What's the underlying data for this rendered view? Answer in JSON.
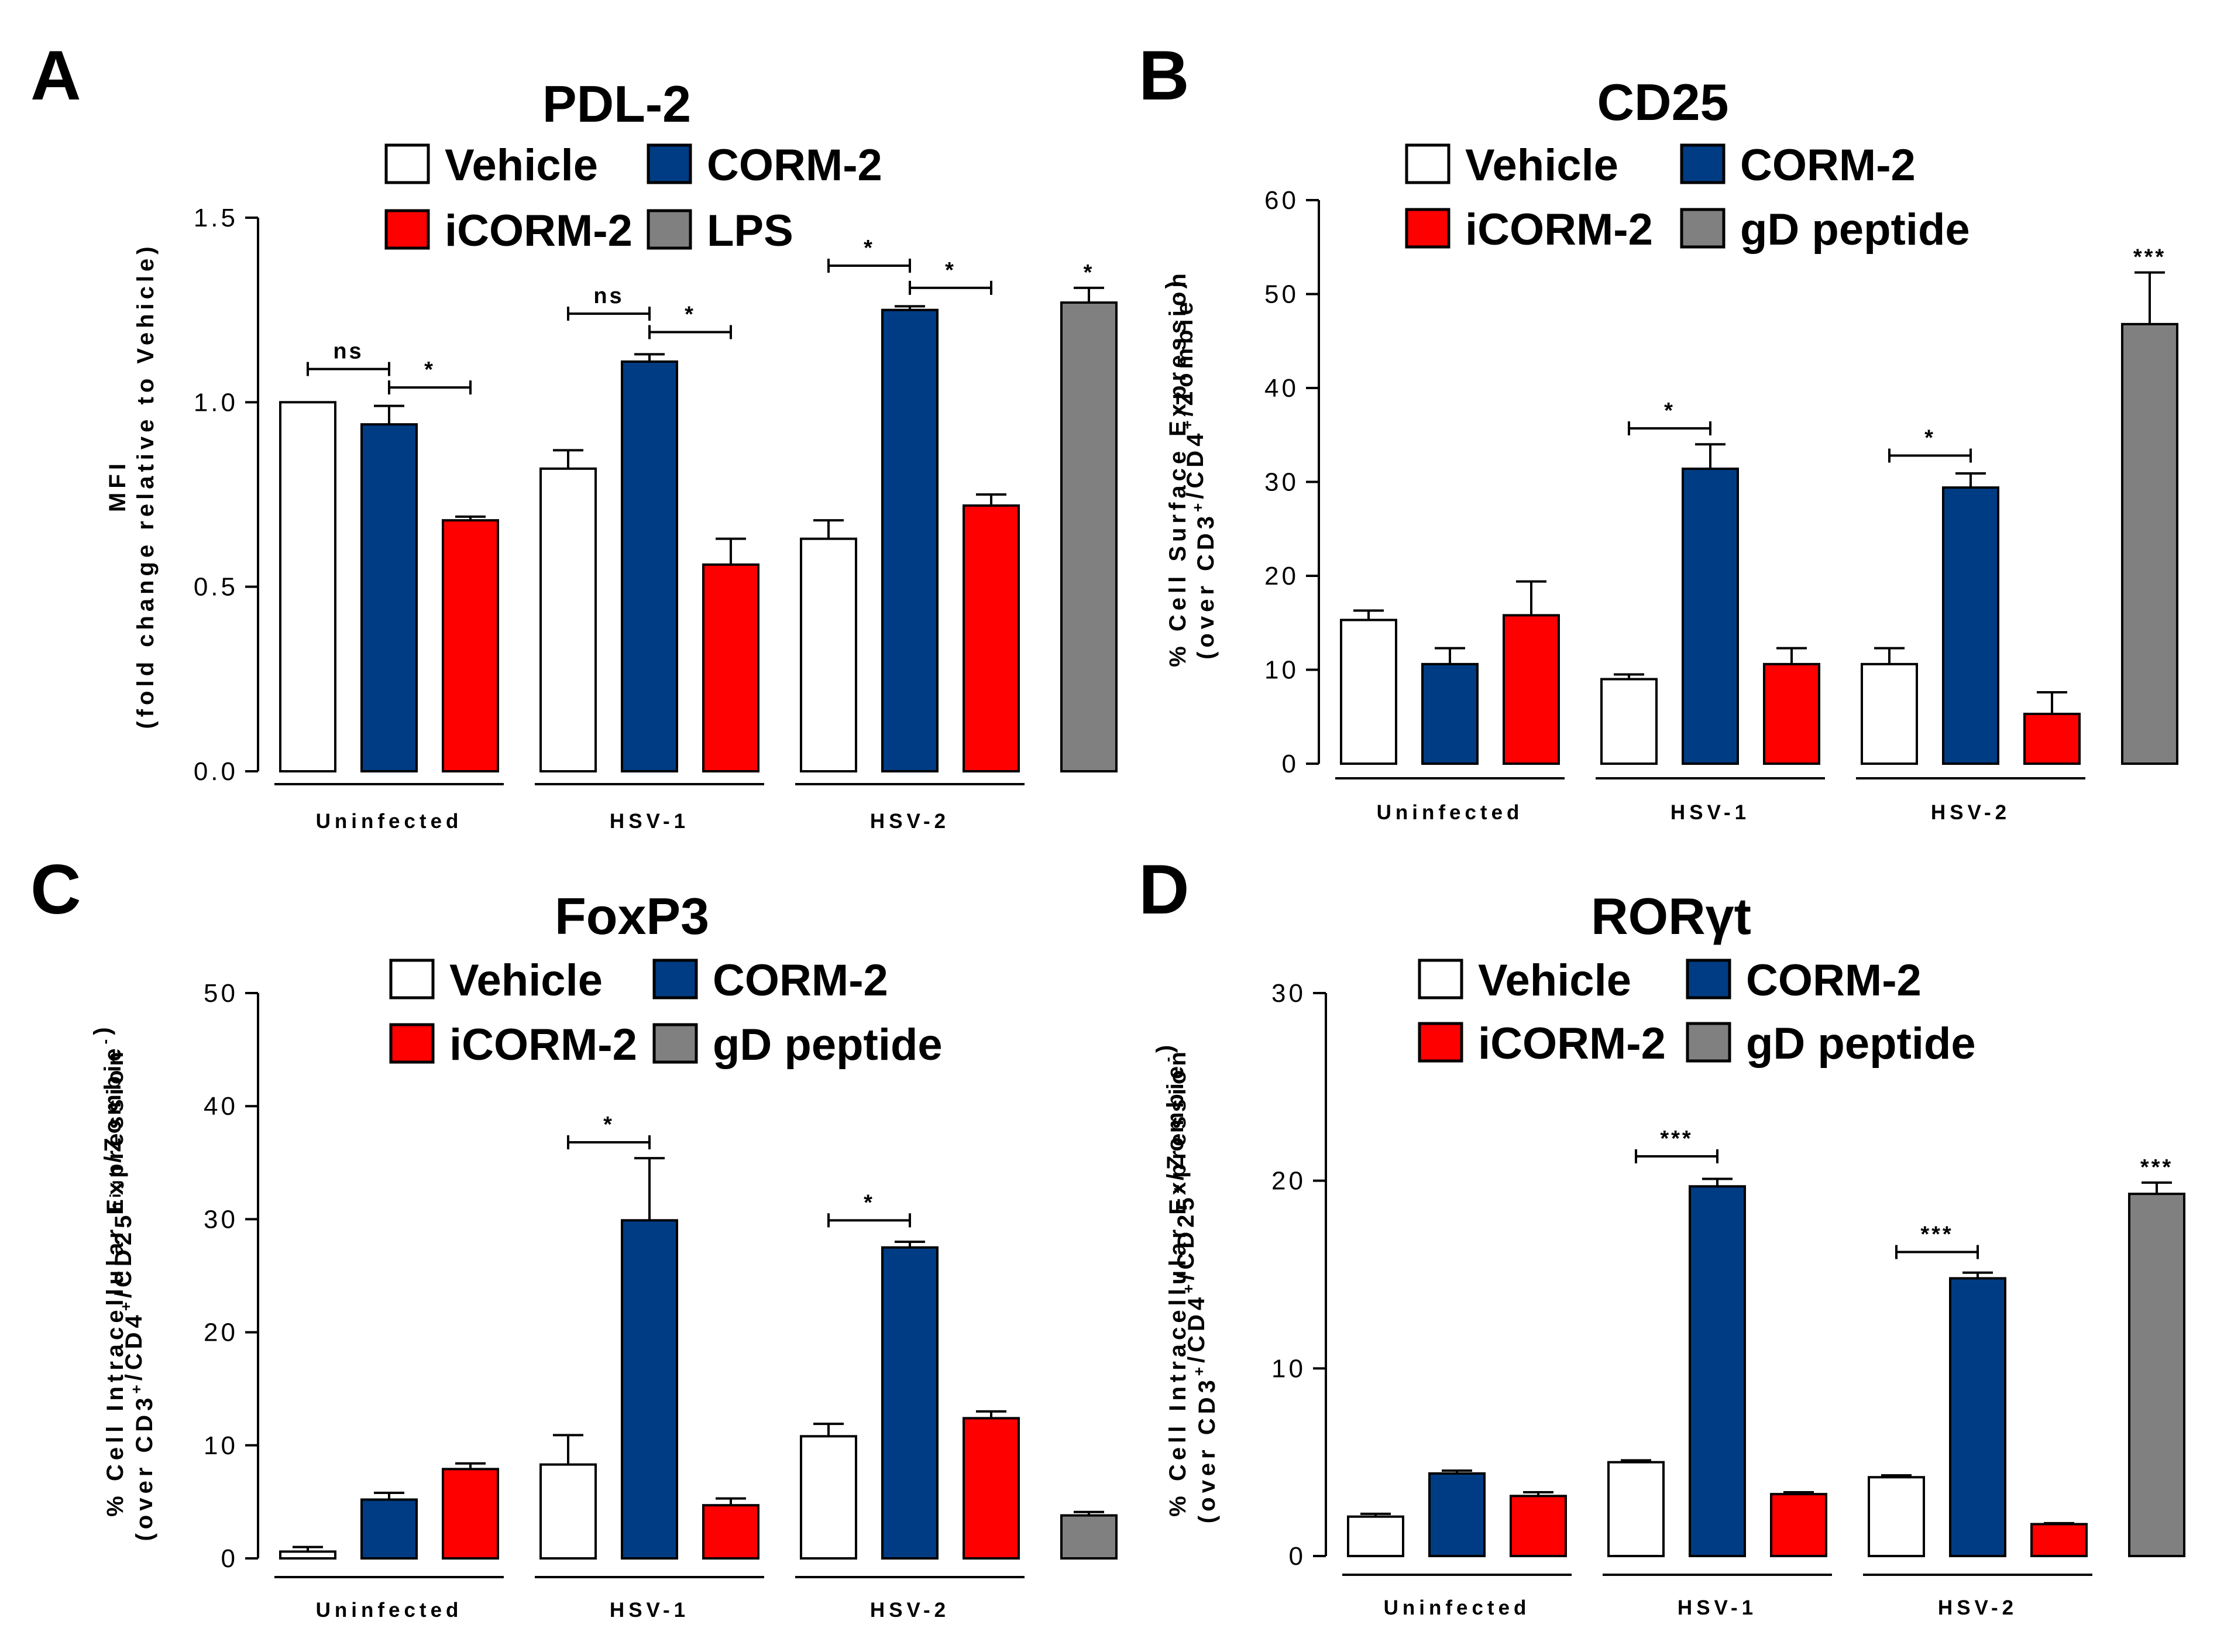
{
  "figure": {
    "colors": {
      "vehicle": "#ffffff",
      "corm2": "#003c83",
      "icorm2": "#ff0000",
      "control": "#808080"
    }
  },
  "chart_data": [
    {
      "type": "bar",
      "letter": "A",
      "title": "PDL-2",
      "ylabel_lines": [
        {
          "t": "MFI"
        },
        {
          "t": "(fold change relative to Vehicle)"
        }
      ],
      "ylim": [
        0,
        1.5
      ],
      "yticks": [
        "0.0",
        "0.5",
        "1.0",
        "1.5"
      ],
      "ytick_values": [
        0,
        0.5,
        1.0,
        1.5
      ],
      "legend": [
        "Vehicle",
        "CORM-2",
        "iCORM-2",
        "LPS"
      ],
      "groups": [
        "Uninfected",
        "HSV-1",
        "HSV-2"
      ],
      "series_values": [
        {
          "group": 0,
          "series": "vehicle",
          "value": 1.0,
          "err": 0
        },
        {
          "group": 0,
          "series": "corm2",
          "value": 0.94,
          "err": 0.05
        },
        {
          "group": 0,
          "series": "icorm2",
          "value": 0.68,
          "err": 0.01
        },
        {
          "group": 1,
          "series": "vehicle",
          "value": 0.82,
          "err": 0.05
        },
        {
          "group": 1,
          "series": "corm2",
          "value": 1.11,
          "err": 0.02
        },
        {
          "group": 1,
          "series": "icorm2",
          "value": 0.56,
          "err": 0.07
        },
        {
          "group": 2,
          "series": "vehicle",
          "value": 0.63,
          "err": 0.05
        },
        {
          "group": 2,
          "series": "corm2",
          "value": 1.25,
          "err": 0.01
        },
        {
          "group": 2,
          "series": "icorm2",
          "value": 0.72,
          "err": 0.03
        },
        {
          "group": 3,
          "series": "control",
          "value": 1.27,
          "err": 0.04,
          "sig": "*"
        }
      ],
      "comparisons": [
        {
          "from": 0,
          "to": 1,
          "label": "ns",
          "y": 1.09
        },
        {
          "from": 1,
          "to": 2,
          "label": "*",
          "y": 1.04
        },
        {
          "from": 3,
          "to": 4,
          "label": "ns",
          "y": 1.24
        },
        {
          "from": 4,
          "to": 5,
          "label": "*",
          "y": 1.19
        },
        {
          "from": 6,
          "to": 7,
          "label": "*",
          "y": 1.37
        },
        {
          "from": 7,
          "to": 8,
          "label": "*",
          "y": 1.31
        }
      ]
    },
    {
      "type": "bar",
      "letter": "B",
      "title": "CD25",
      "ylabel_lines": [
        {
          "t": "% Cell Surface Expression"
        },
        {
          "t": "(over CD3",
          "s": "+",
          "t2": "/CD4",
          "s2": "+",
          "t3": "/Zombie",
          "s3": "-",
          "t4": ")"
        }
      ],
      "ylim": [
        0,
        60
      ],
      "yticks": [
        "0",
        "10",
        "20",
        "30",
        "40",
        "50",
        "60"
      ],
      "ytick_values": [
        0,
        10,
        20,
        30,
        40,
        50,
        60
      ],
      "legend": [
        "Vehicle",
        "CORM-2",
        "iCORM-2",
        "gD peptide"
      ],
      "groups": [
        "Uninfected",
        "HSV-1",
        "HSV-2"
      ],
      "series_values": [
        {
          "group": 0,
          "series": "vehicle",
          "value": 15.3,
          "err": 1.0
        },
        {
          "group": 0,
          "series": "corm2",
          "value": 10.6,
          "err": 1.7
        },
        {
          "group": 0,
          "series": "icorm2",
          "value": 15.8,
          "err": 3.6
        },
        {
          "group": 1,
          "series": "vehicle",
          "value": 9.0,
          "err": 0.5
        },
        {
          "group": 1,
          "series": "corm2",
          "value": 31.4,
          "err": 2.6
        },
        {
          "group": 1,
          "series": "icorm2",
          "value": 10.6,
          "err": 1.7
        },
        {
          "group": 2,
          "series": "vehicle",
          "value": 10.6,
          "err": 1.7
        },
        {
          "group": 2,
          "series": "corm2",
          "value": 29.4,
          "err": 1.5
        },
        {
          "group": 2,
          "series": "icorm2",
          "value": 5.3,
          "err": 2.3
        },
        {
          "group": 3,
          "series": "control",
          "value": 46.8,
          "err": 5.5,
          "sig": "***"
        }
      ],
      "comparisons": [
        {
          "from": 3,
          "to": 4,
          "label": "*",
          "y": 35.7
        },
        {
          "from": 6,
          "to": 7,
          "label": "*",
          "y": 32.8
        }
      ]
    },
    {
      "type": "bar",
      "letter": "C",
      "title": "FoxP3",
      "ylabel_lines": [
        {
          "t": "% Cell Intracellular Expression"
        },
        {
          "t": "(over CD3",
          "s": "+",
          "t2": "/CD4",
          "s2": "+",
          "t3": "/CD25",
          "s3": "high",
          "t4": "/Zombie",
          "s4": "-",
          "t5": ")"
        }
      ],
      "ylim": [
        0,
        50
      ],
      "yticks": [
        "0",
        "10",
        "20",
        "30",
        "40",
        "50"
      ],
      "ytick_values": [
        0,
        10,
        20,
        30,
        40,
        50
      ],
      "legend": [
        "Vehicle",
        "CORM-2",
        "iCORM-2",
        "gD peptide"
      ],
      "groups": [
        "Uninfected",
        "HSV-1",
        "HSV-2"
      ],
      "series_values": [
        {
          "group": 0,
          "series": "vehicle",
          "value": 0.6,
          "err": 0.4
        },
        {
          "group": 0,
          "series": "corm2",
          "value": 5.2,
          "err": 0.6
        },
        {
          "group": 0,
          "series": "icorm2",
          "value": 7.9,
          "err": 0.5
        },
        {
          "group": 1,
          "series": "vehicle",
          "value": 8.3,
          "err": 2.6
        },
        {
          "group": 1,
          "series": "corm2",
          "value": 29.9,
          "err": 5.5
        },
        {
          "group": 1,
          "series": "icorm2",
          "value": 4.7,
          "err": 0.6
        },
        {
          "group": 2,
          "series": "vehicle",
          "value": 10.8,
          "err": 1.1
        },
        {
          "group": 2,
          "series": "corm2",
          "value": 27.5,
          "err": 0.5
        },
        {
          "group": 2,
          "series": "icorm2",
          "value": 12.4,
          "err": 0.6
        },
        {
          "group": 3,
          "series": "control",
          "value": 3.8,
          "err": 0.3
        }
      ],
      "comparisons": [
        {
          "from": 3,
          "to": 4,
          "label": "*",
          "y": 36.8
        },
        {
          "from": 6,
          "to": 7,
          "label": "*",
          "y": 29.9
        }
      ]
    },
    {
      "type": "bar",
      "letter": "D",
      "title": "RORγt",
      "ylabel_lines": [
        {
          "t": "% Cell Intracellular Expression"
        },
        {
          "t": "(over CD3",
          "s": "+",
          "t2": "/CD4",
          "s2": "+",
          "t3": "/CD25",
          "s3": "+",
          "t4": "/Zombie",
          "s4": "-",
          "t5": ")"
        }
      ],
      "ylim": [
        0,
        30
      ],
      "yticks": [
        "0",
        "10",
        "20",
        "30"
      ],
      "ytick_values": [
        0,
        10,
        20,
        30
      ],
      "legend": [
        "Vehicle",
        "CORM-2",
        "iCORM-2",
        "gD peptide"
      ],
      "groups": [
        "Uninfected",
        "HSV-1",
        "HSV-2"
      ],
      "series_values": [
        {
          "group": 0,
          "series": "vehicle",
          "value": 2.1,
          "err": 0.15
        },
        {
          "group": 0,
          "series": "corm2",
          "value": 4.4,
          "err": 0.15
        },
        {
          "group": 0,
          "series": "icorm2",
          "value": 3.2,
          "err": 0.2
        },
        {
          "group": 1,
          "series": "vehicle",
          "value": 5.0,
          "err": 0.1
        },
        {
          "group": 1,
          "series": "corm2",
          "value": 19.7,
          "err": 0.4
        },
        {
          "group": 1,
          "series": "icorm2",
          "value": 3.3,
          "err": 0.1
        },
        {
          "group": 2,
          "series": "vehicle",
          "value": 4.2,
          "err": 0.1
        },
        {
          "group": 2,
          "series": "corm2",
          "value": 14.8,
          "err": 0.3
        },
        {
          "group": 2,
          "series": "icorm2",
          "value": 1.7,
          "err": 0.05
        },
        {
          "group": 3,
          "series": "control",
          "value": 19.3,
          "err": 0.6,
          "sig": "***"
        }
      ],
      "comparisons": [
        {
          "from": 3,
          "to": 4,
          "label": "***",
          "y": 21.3
        },
        {
          "from": 6,
          "to": 7,
          "label": "***",
          "y": 16.2
        }
      ]
    }
  ]
}
